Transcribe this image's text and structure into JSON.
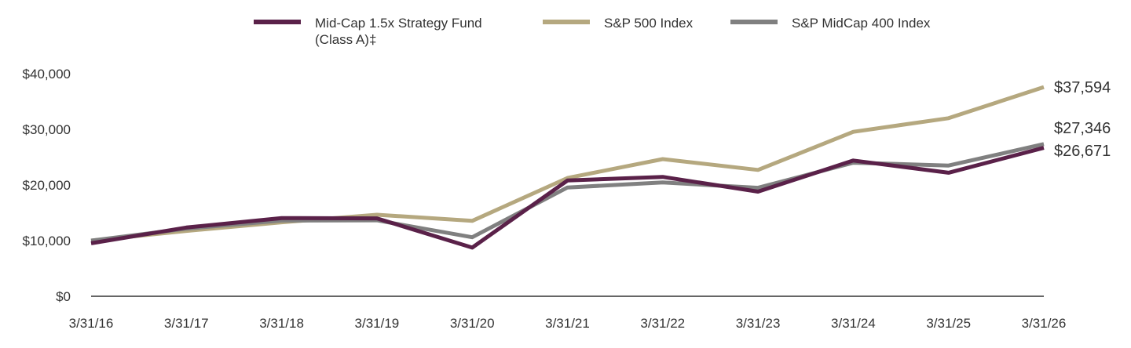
{
  "chart_data": {
    "type": "line",
    "title": "",
    "xlabel": "",
    "ylabel": "",
    "x": [
      "3/31/16",
      "3/31/17",
      "3/31/18",
      "3/31/19",
      "3/31/20",
      "3/31/21",
      "3/31/22",
      "3/31/23",
      "3/31/24",
      "3/31/25",
      "3/31/26"
    ],
    "ylim": [
      0,
      40000
    ],
    "y_ticks": [
      0,
      10000,
      20000,
      30000,
      40000
    ],
    "y_tick_labels": [
      "$0",
      "$10,000",
      "$20,000",
      "$30,000",
      "$40,000"
    ],
    "grid": false,
    "legend_position": "top",
    "series": [
      {
        "name": "Mid-Cap 1.5x Strategy Fund (Class A)‡",
        "legend_lines": [
          "Mid-Cap 1.5x Strategy Fund",
          "(Class A)‡"
        ],
        "color": "#5a2149",
        "values": [
          9525,
          12350,
          14050,
          14000,
          8750,
          20800,
          21450,
          18800,
          24400,
          22200,
          26671
        ],
        "end_label": "$26,671"
      },
      {
        "name": "S&P 500 Index",
        "legend_lines": [
          "S&P 500 Index"
        ],
        "color": "#b5a87f",
        "values": [
          10000,
          11750,
          13300,
          14650,
          13550,
          21250,
          24650,
          22700,
          29550,
          32000,
          37594
        ],
        "end_label": "$37,594"
      },
      {
        "name": "S&P MidCap 400 Index",
        "legend_lines": [
          "S&P MidCap 400 Index"
        ],
        "color": "#808080",
        "values": [
          10000,
          12150,
          13600,
          13650,
          10600,
          19550,
          20450,
          19500,
          24000,
          23500,
          27346
        ],
        "end_label": "$27,346"
      }
    ]
  }
}
